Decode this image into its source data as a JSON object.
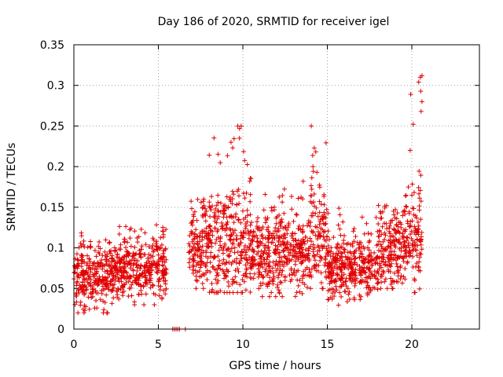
{
  "chart_data": {
    "type": "scatter",
    "title": "Day 186 of 2020, SRMTID for receiver igel",
    "xlabel": "GPS time / hours",
    "ylabel": "SRMTID / TECUs",
    "xlim": [
      0,
      24
    ],
    "ylim": [
      0,
      0.35
    ],
    "x_ticks": [
      "0",
      "5",
      "10",
      "15",
      "20"
    ],
    "x_tick_values": [
      0,
      5,
      10,
      15,
      20
    ],
    "y_ticks": [
      "0",
      "0.05",
      "0.1",
      "0.15",
      "0.2",
      "0.25",
      "0.3",
      "0.35"
    ],
    "y_tick_values": [
      0,
      0.05,
      0.1,
      0.15,
      0.2,
      0.25,
      0.3,
      0.35
    ],
    "grid": true,
    "marker": "+",
    "color": "#e00000",
    "series": [
      {
        "name": "SRMTID",
        "segments": [
          {
            "x_start": 0.0,
            "x_end": 2.0,
            "y_mean": 0.065,
            "y_spread": 0.02,
            "y_min": 0.02,
            "y_max": 0.125
          },
          {
            "x_start": 2.0,
            "x_end": 5.5,
            "y_mean": 0.075,
            "y_spread": 0.018,
            "y_min": 0.03,
            "y_max": 0.13
          },
          {
            "x_start": 5.5,
            "x_end": 6.8,
            "y_mean": 0.0,
            "y_spread": 0.0,
            "y_min": 0.0,
            "y_max": 0.0
          },
          {
            "x_start": 6.8,
            "x_end": 8.0,
            "y_mean": 0.1,
            "y_spread": 0.025,
            "y_min": 0.05,
            "y_max": 0.16
          },
          {
            "x_start": 8.0,
            "x_end": 10.5,
            "y_mean": 0.105,
            "y_spread": 0.035,
            "y_min": 0.045,
            "y_max": 0.25
          },
          {
            "x_start": 10.5,
            "x_end": 14.0,
            "y_mean": 0.095,
            "y_spread": 0.025,
            "y_min": 0.04,
            "y_max": 0.19
          },
          {
            "x_start": 14.0,
            "x_end": 15.0,
            "y_mean": 0.11,
            "y_spread": 0.03,
            "y_min": 0.05,
            "y_max": 0.25
          },
          {
            "x_start": 15.0,
            "x_end": 18.0,
            "y_mean": 0.075,
            "y_spread": 0.018,
            "y_min": 0.02,
            "y_max": 0.15
          },
          {
            "x_start": 18.0,
            "x_end": 19.5,
            "y_mean": 0.1,
            "y_spread": 0.025,
            "y_min": 0.05,
            "y_max": 0.16
          },
          {
            "x_start": 19.5,
            "x_end": 20.6,
            "y_mean": 0.115,
            "y_spread": 0.035,
            "y_min": 0.045,
            "y_max": 0.31
          }
        ],
        "gap_points": [
          {
            "x": 5.85,
            "y": 0
          },
          {
            "x": 5.95,
            "y": 0
          },
          {
            "x": 6.05,
            "y": 0
          },
          {
            "x": 6.15,
            "y": 0
          },
          {
            "x": 6.25,
            "y": 0
          },
          {
            "x": 6.6,
            "y": 0
          }
        ],
        "notable_points": [
          {
            "x": 9.7,
            "y": 0.25
          },
          {
            "x": 9.9,
            "y": 0.25
          },
          {
            "x": 14.05,
            "y": 0.25
          },
          {
            "x": 20.5,
            "y": 0.31
          },
          {
            "x": 20.6,
            "y": 0.312
          },
          {
            "x": 20.6,
            "y": 0.28
          },
          {
            "x": 20.55,
            "y": 0.268
          },
          {
            "x": 19.9,
            "y": 0.22
          },
          {
            "x": 14.15,
            "y": 0.2
          },
          {
            "x": 9.3,
            "y": 0.23
          },
          {
            "x": 9.8,
            "y": 0.235
          }
        ]
      }
    ]
  }
}
